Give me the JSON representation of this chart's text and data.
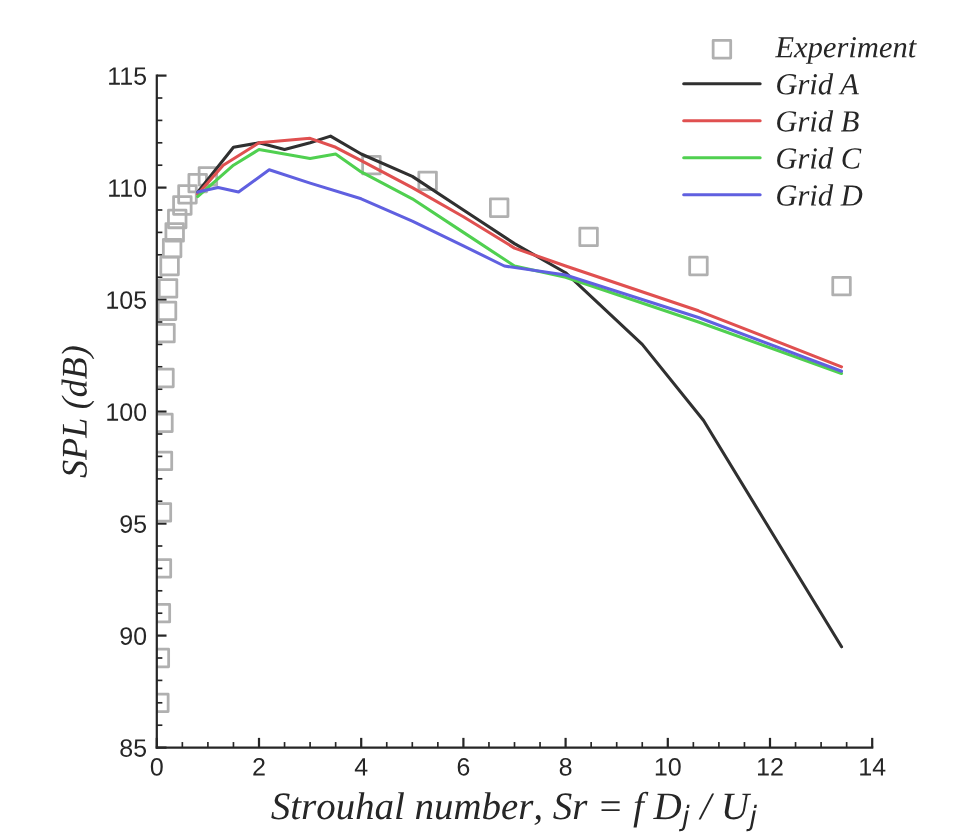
{
  "chart_data": {
    "type": "line",
    "xlabel": "Strouhal number, Sr = f D$_{j}$ / U$_{j}$",
    "ylabel": "SPL (dB)",
    "xlim": [
      0,
      14
    ],
    "ylim": [
      85,
      115
    ],
    "xticks": [
      0,
      2,
      4,
      6,
      8,
      10,
      12,
      14
    ],
    "yticks": [
      85,
      90,
      95,
      100,
      105,
      110,
      115
    ],
    "grid": false,
    "legend": "top right",
    "line_style": "solid",
    "series": [
      {
        "name": "Experiment",
        "type": "scatter",
        "marker": "square",
        "color": "#b0b0b0",
        "x": [
          0.05,
          0.06,
          0.08,
          0.1,
          0.1,
          0.12,
          0.13,
          0.15,
          0.17,
          0.2,
          0.22,
          0.25,
          0.3,
          0.35,
          0.4,
          0.5,
          0.6,
          0.8,
          1.0,
          4.2,
          5.3,
          6.7,
          8.45,
          10.6,
          13.4
        ],
        "values": [
          87,
          89,
          91,
          93,
          95.5,
          97.8,
          99.5,
          101.5,
          103.5,
          104.5,
          105.5,
          106.5,
          107.3,
          108,
          108.6,
          109.2,
          109.7,
          110.2,
          110.5,
          111,
          110.3,
          109.1,
          107.8,
          106.5,
          105.6
        ]
      },
      {
        "name": "Grid A",
        "color": "#303030",
        "x": [
          0.8,
          1.5,
          2,
          2.5,
          3,
          3.4,
          4,
          5,
          6,
          7,
          8,
          9.5,
          10.7,
          13.4
        ],
        "values": [
          109.8,
          111.8,
          112,
          111.7,
          112,
          112.3,
          111.5,
          110.5,
          109,
          107.5,
          106.2,
          103,
          99.6,
          89.5
        ]
      },
      {
        "name": "Grid B",
        "color": "#e05050",
        "x": [
          0.8,
          1.3,
          2,
          3,
          3.5,
          4,
          5,
          6,
          7,
          8,
          10.6,
          13.4
        ],
        "values": [
          109.7,
          111,
          112,
          112.2,
          111.8,
          111.2,
          110,
          108.7,
          107.3,
          106.5,
          104.5,
          102
        ]
      },
      {
        "name": "Grid C",
        "color": "#50d050",
        "x": [
          0.8,
          1.5,
          2,
          3,
          3.5,
          4,
          5,
          6,
          7,
          8,
          10.6,
          13.4
        ],
        "values": [
          109.6,
          111,
          111.7,
          111.3,
          111.5,
          110.7,
          109.5,
          108,
          106.5,
          106,
          104,
          101.7
        ]
      },
      {
        "name": "Grid D",
        "color": "#6060e0",
        "x": [
          0.8,
          1.2,
          1.6,
          2.2,
          3,
          4,
          5,
          6,
          6.8,
          8,
          10.6,
          13.4
        ],
        "values": [
          109.8,
          110,
          109.8,
          110.8,
          110.2,
          109.5,
          108.5,
          107.4,
          106.5,
          106.1,
          104.2,
          101.8
        ]
      }
    ]
  }
}
